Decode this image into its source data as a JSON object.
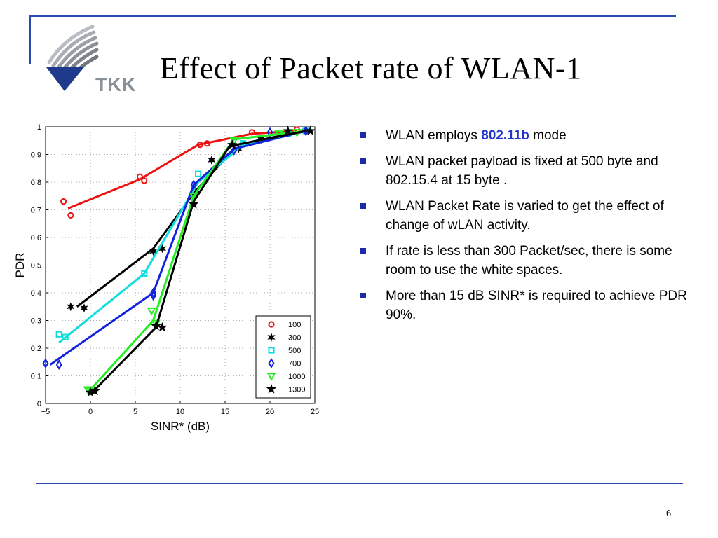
{
  "slide": {
    "title": "Effect of Packet rate of WLAN-1",
    "logo_text": "TKK",
    "page_number": "6"
  },
  "bullets": [
    {
      "pre": "WLAN employs ",
      "highlight": "802.11b",
      "post": " mode"
    },
    {
      "text": "WLAN packet payload is fixed at 500 byte and 802.15.4 at 15 byte ."
    },
    {
      "text": "WLAN Packet Rate is varied to get the effect of change of wLAN activity."
    },
    {
      "text": "If rate is less than 300 Packet/sec, there is some room to use the white spaces."
    },
    {
      "text": "More than 15 dB SINR* is required to achieve PDR  90%."
    }
  ],
  "colors": {
    "accent": "#2a4cb0",
    "highlight": "#2233cc"
  },
  "chart_data": {
    "type": "line",
    "xlabel": "SINR* (dB)",
    "ylabel": "PDR",
    "xlim": [
      -5,
      25
    ],
    "ylim": [
      0,
      1
    ],
    "xticks": [
      "−5",
      "0",
      "5",
      "10",
      "15",
      "20",
      "25"
    ],
    "yticks": [
      "0",
      "0.1",
      "0.2",
      "0.3",
      "0.4",
      "0.5",
      "0.6",
      "0.7",
      "0.8",
      "0.9",
      "1"
    ],
    "grid": true,
    "legend_position": "bottom-right",
    "series": [
      {
        "name": "100",
        "color": "#ee1111",
        "marker": "circle",
        "line": [
          [
            -2.5,
            0.705
          ],
          [
            5.5,
            0.81
          ],
          [
            12,
            0.935
          ],
          [
            18,
            0.975
          ],
          [
            23,
            0.985
          ]
        ],
        "points": [
          [
            -3,
            0.73
          ],
          [
            -2.2,
            0.68
          ],
          [
            5.5,
            0.82
          ],
          [
            6,
            0.805
          ],
          [
            12.2,
            0.935
          ],
          [
            13,
            0.94
          ],
          [
            18,
            0.98
          ],
          [
            23,
            0.99
          ],
          [
            24,
            0.985
          ]
        ]
      },
      {
        "name": "300",
        "color": "#000000",
        "marker": "hexstar",
        "line": [
          [
            -1.5,
            0.35
          ],
          [
            7,
            0.56
          ],
          [
            11.5,
            0.76
          ],
          [
            16,
            0.92
          ],
          [
            20,
            0.96
          ],
          [
            24,
            0.985
          ]
        ],
        "points": [
          [
            -2.2,
            0.35
          ],
          [
            -0.7,
            0.345
          ],
          [
            7,
            0.55
          ],
          [
            8,
            0.56
          ],
          [
            11.7,
            0.76
          ],
          [
            13.5,
            0.88
          ],
          [
            16.5,
            0.92
          ],
          [
            19,
            0.955
          ],
          [
            22,
            0.98
          ],
          [
            24,
            0.985
          ]
        ]
      },
      {
        "name": "500",
        "color": "#11dddd",
        "marker": "square",
        "line": [
          [
            -3.5,
            0.22
          ],
          [
            6,
            0.47
          ],
          [
            12,
            0.8
          ],
          [
            17,
            0.935
          ],
          [
            24,
            0.985
          ]
        ],
        "points": [
          [
            -3.5,
            0.25
          ],
          [
            -2.8,
            0.24
          ],
          [
            6,
            0.47
          ],
          [
            12,
            0.83
          ],
          [
            17,
            0.94
          ],
          [
            22,
            0.975
          ],
          [
            24,
            0.985
          ]
        ]
      },
      {
        "name": "700",
        "color": "#1122dd",
        "marker": "diamond",
        "line": [
          [
            -4.5,
            0.14
          ],
          [
            7,
            0.4
          ],
          [
            11.5,
            0.79
          ],
          [
            16,
            0.92
          ],
          [
            24,
            0.985
          ]
        ],
        "points": [
          [
            -5,
            0.145
          ],
          [
            -3.5,
            0.14
          ],
          [
            7,
            0.39
          ],
          [
            7,
            0.4
          ],
          [
            11.5,
            0.79
          ],
          [
            16,
            0.915
          ],
          [
            20,
            0.98
          ],
          [
            24,
            0.985
          ]
        ]
      },
      {
        "name": "1000",
        "color": "#22ee22",
        "marker": "triangle-down",
        "line": [
          [
            0,
            0.05
          ],
          [
            7,
            0.3
          ],
          [
            11.5,
            0.75
          ],
          [
            16,
            0.955
          ],
          [
            24,
            0.985
          ]
        ],
        "points": [
          [
            -0.3,
            0.05
          ],
          [
            0,
            0.045
          ],
          [
            6.8,
            0.335
          ],
          [
            7.3,
            0.29
          ],
          [
            11.5,
            0.75
          ],
          [
            16,
            0.95
          ],
          [
            21,
            0.975
          ],
          [
            23,
            0.98
          ]
        ]
      },
      {
        "name": "1300",
        "color": "#000000",
        "marker": "star",
        "line": [
          [
            0.2,
            0.04
          ],
          [
            7.3,
            0.275
          ],
          [
            11.5,
            0.73
          ],
          [
            15.5,
            0.93
          ],
          [
            24,
            0.985
          ]
        ],
        "points": [
          [
            0,
            0.04
          ],
          [
            0.5,
            0.045
          ],
          [
            7.3,
            0.28
          ],
          [
            8,
            0.275
          ],
          [
            11.5,
            0.72
          ],
          [
            15.8,
            0.935
          ],
          [
            22,
            0.985
          ],
          [
            24.5,
            0.985
          ]
        ]
      }
    ]
  }
}
